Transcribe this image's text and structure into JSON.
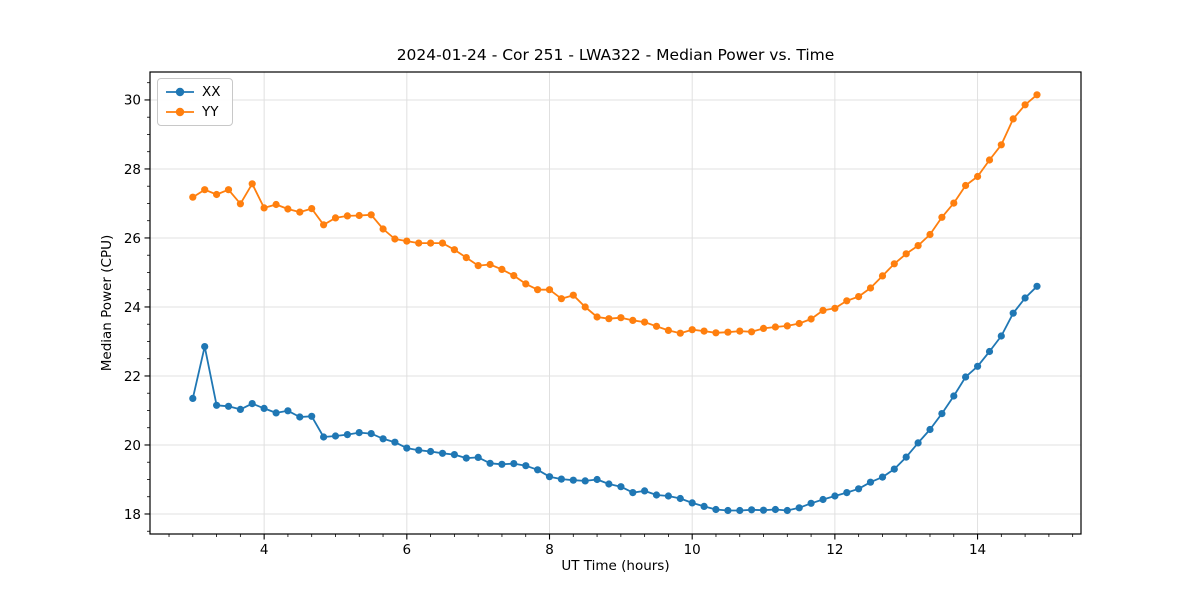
{
  "figure": {
    "background": "#ffffff"
  },
  "chart_data": {
    "type": "line",
    "title": "2024-01-24 - Cor 251 - LWA322 - Median Power vs. Time",
    "xlabel": "UT Time (hours)",
    "ylabel": "Median Power (CPU)",
    "xlim": [
      2.4,
      15.45
    ],
    "ylim": [
      17.42,
      30.81
    ],
    "x_ticks": [
      4,
      6,
      8,
      10,
      12,
      14
    ],
    "y_ticks": [
      18,
      20,
      22,
      24,
      26,
      28,
      30
    ],
    "x_minor_step": 0.33333,
    "y_minor_step": 0.5,
    "grid": "major",
    "grid_color": "#e0e0e0",
    "legend_position": "upper-left",
    "x": [
      3.0,
      3.167,
      3.333,
      3.5,
      3.667,
      3.833,
      4.0,
      4.167,
      4.333,
      4.5,
      4.667,
      4.833,
      5.0,
      5.167,
      5.333,
      5.5,
      5.667,
      5.833,
      6.0,
      6.167,
      6.333,
      6.5,
      6.667,
      6.833,
      7.0,
      7.167,
      7.333,
      7.5,
      7.667,
      7.833,
      8.0,
      8.167,
      8.333,
      8.5,
      8.667,
      8.833,
      9.0,
      9.167,
      9.333,
      9.5,
      9.667,
      9.833,
      10.0,
      10.167,
      10.333,
      10.5,
      10.667,
      10.833,
      11.0,
      11.167,
      11.333,
      11.5,
      11.667,
      11.833,
      12.0,
      12.167,
      12.333,
      12.5,
      12.667,
      12.833,
      13.0,
      13.167,
      13.333,
      13.5,
      13.667,
      13.833,
      14.0,
      14.167,
      14.333,
      14.5,
      14.667,
      14.833
    ],
    "series": [
      {
        "name": "XX",
        "color": "#1f77b4",
        "marker": "circle",
        "values": [
          21.35,
          22.85,
          21.15,
          21.12,
          21.03,
          21.2,
          21.06,
          20.93,
          20.99,
          20.81,
          20.83,
          20.23,
          20.26,
          20.3,
          20.36,
          20.33,
          20.18,
          20.08,
          19.91,
          19.85,
          19.81,
          19.76,
          19.72,
          19.62,
          19.64,
          19.47,
          19.44,
          19.46,
          19.4,
          19.28,
          19.08,
          19.01,
          18.98,
          18.96,
          19.0,
          18.87,
          18.79,
          18.62,
          18.67,
          18.55,
          18.52,
          18.45,
          18.32,
          18.22,
          18.13,
          18.1,
          18.1,
          18.12,
          18.11,
          18.13,
          18.1,
          18.18,
          18.31,
          18.42,
          18.52,
          18.62,
          18.73,
          18.92,
          19.07,
          19.3,
          19.65,
          20.06,
          20.45,
          20.91,
          21.42,
          21.97,
          22.28,
          22.71,
          23.16,
          23.82,
          24.26,
          24.6
        ]
      },
      {
        "name": "YY",
        "color": "#ff7f0e",
        "marker": "circle",
        "values": [
          27.18,
          27.4,
          27.26,
          27.4,
          26.99,
          27.57,
          26.87,
          26.97,
          26.84,
          26.75,
          26.85,
          26.38,
          26.58,
          26.64,
          26.65,
          26.67,
          26.26,
          25.97,
          25.91,
          25.85,
          25.85,
          25.85,
          25.66,
          25.43,
          25.2,
          25.23,
          25.09,
          24.91,
          24.67,
          24.5,
          24.5,
          24.24,
          24.34,
          24.0,
          23.71,
          23.66,
          23.69,
          23.61,
          23.56,
          23.44,
          23.32,
          23.24,
          23.34,
          23.3,
          23.25,
          23.27,
          23.3,
          23.28,
          23.38,
          23.42,
          23.45,
          23.52,
          23.65,
          23.9,
          23.96,
          24.18,
          24.3,
          24.55,
          24.9,
          25.25,
          25.54,
          25.78,
          26.1,
          26.6,
          27.01,
          27.52,
          27.78,
          28.26,
          28.7,
          29.45,
          29.86,
          30.15
        ]
      }
    ]
  }
}
